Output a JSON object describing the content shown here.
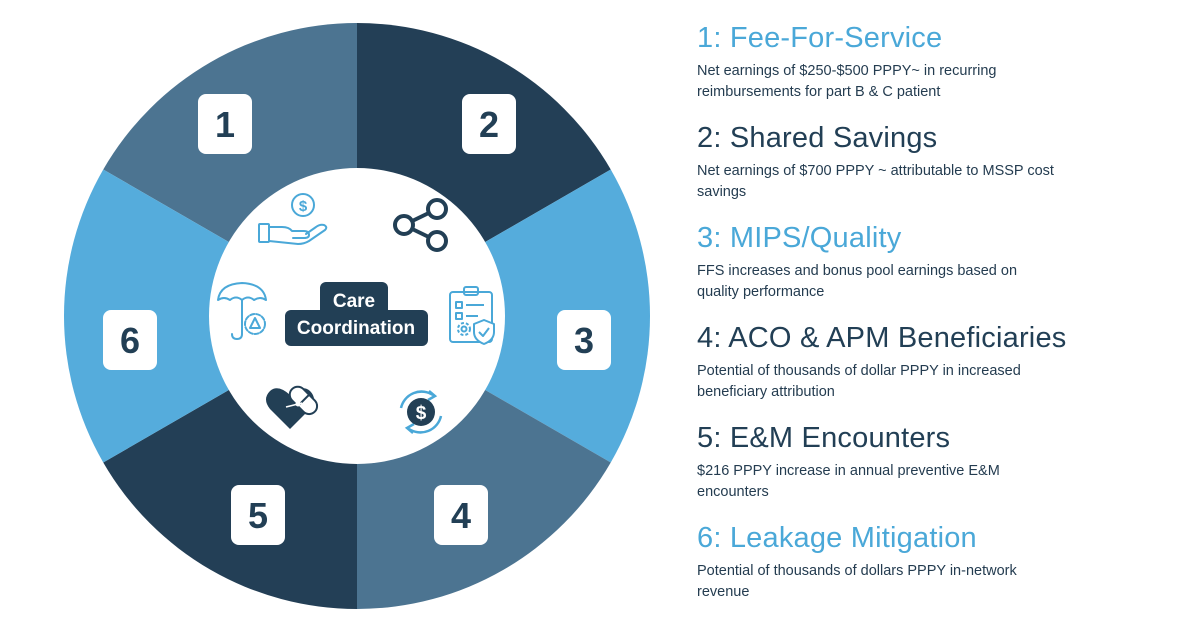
{
  "colors": {
    "light": "#55acdc",
    "mid": "#4c7491",
    "dark": "#233f56",
    "iconBlue": "#4aa8d8",
    "iconDark": "#223f55"
  },
  "center": {
    "line1": "Care",
    "line2": "Coordination"
  },
  "segments": [
    {
      "number": "1",
      "color_key": "mid"
    },
    {
      "number": "2",
      "color_key": "dark"
    },
    {
      "number": "3",
      "color_key": "light"
    },
    {
      "number": "4",
      "color_key": "mid"
    },
    {
      "number": "5",
      "color_key": "dark"
    },
    {
      "number": "6",
      "color_key": "light"
    }
  ],
  "icons": [
    "hand-dollar-icon",
    "share-icon",
    "clipboard-gear-icon",
    "dollar-cycle-icon",
    "heart-pill-icon",
    "umbrella-gear-icon"
  ],
  "items": [
    {
      "title": "1: Fee-For-Service",
      "color": "#4aa8d8",
      "desc": "Net earnings of $250-$500 PPPY~ in recurring reimbursements for part B & C patient"
    },
    {
      "title": "2: Shared Savings",
      "color": "#223f55",
      "desc": "Net earnings of $700 PPPY ~ attributable to MSSP cost savings"
    },
    {
      "title": "3: MIPS/Quality",
      "color": "#4aa8d8",
      "desc": "FFS increases and bonus pool earnings based on quality performance"
    },
    {
      "title": "4: ACO & APM Beneficiaries",
      "color": "#223f55",
      "desc": "Potential of thousands of dollar PPPY in increased beneficiary attribution"
    },
    {
      "title": "5: E&M Encounters",
      "color": "#223f55",
      "desc": "$216 PPPY increase in annual preventive E&M encounters"
    },
    {
      "title": "6: Leakage Mitigation",
      "color": "#4aa8d8",
      "desc": "Potential of thousands of dollars PPPY in-network revenue"
    }
  ]
}
